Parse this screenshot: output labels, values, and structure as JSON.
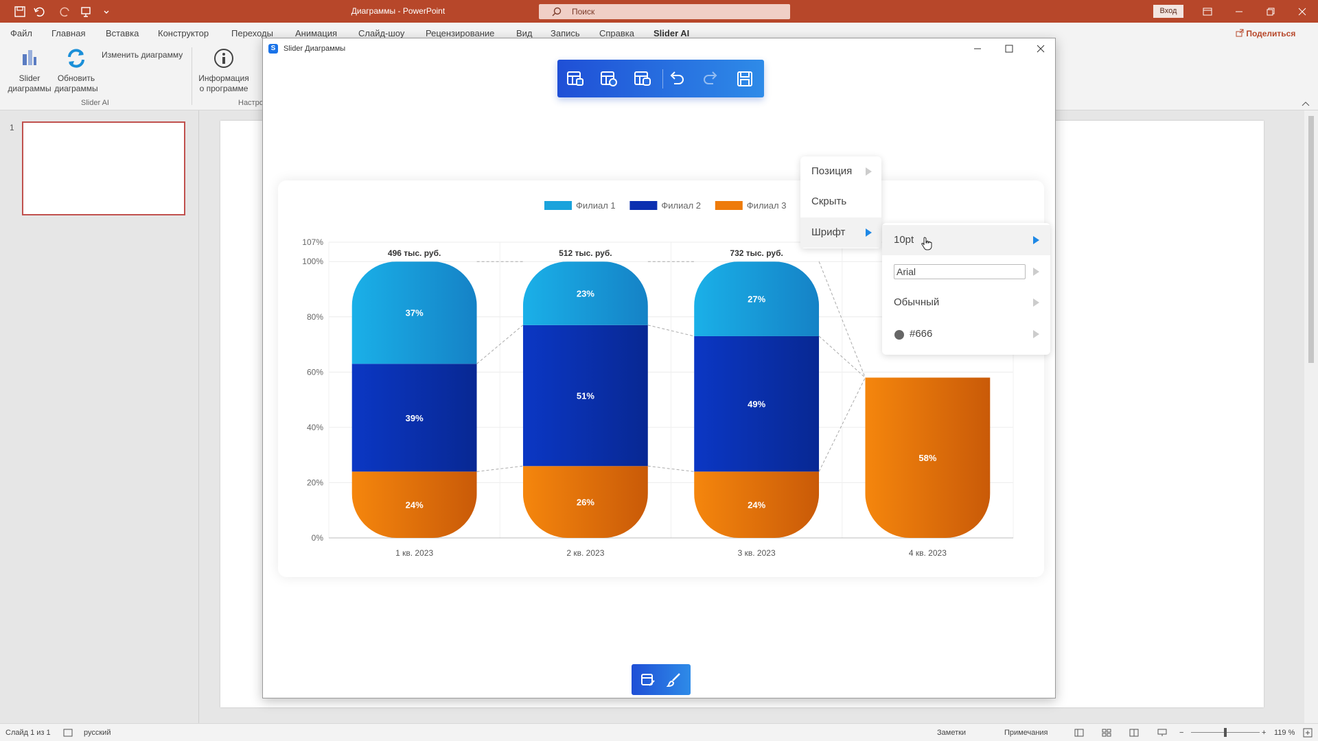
{
  "app": {
    "doc_title": "Диаграммы - PowerPoint",
    "search_placeholder": "Поиск",
    "signin_label": "Вход",
    "share_label": "Поделиться"
  },
  "ribbon": {
    "tabs": [
      "Файл",
      "Главная",
      "Вставка",
      "Конструктор",
      "Переходы",
      "Анимация",
      "Слайд-шоу",
      "Рецензирование",
      "Вид",
      "Запись",
      "Справка",
      "Slider AI"
    ],
    "active_tab": "Slider AI",
    "buttons": {
      "slider_charts": "Slider\nдиаграммы",
      "refresh_charts": "Обновить\nдиаграммы",
      "edit_chart": "Изменить диаграмму",
      "about": "Информация\nо программе"
    },
    "group_label": "Slider AI",
    "group_label_2": "Настро"
  },
  "thumbnails": {
    "slide_number": "1"
  },
  "status": {
    "slide_info": "Слайд 1 из 1",
    "language": "русский",
    "notes": "Заметки",
    "comments": "Примечания",
    "zoom": "119 %"
  },
  "dialog": {
    "title": "Slider Диаграммы",
    "logo_letter": "S"
  },
  "menu": {
    "items": [
      {
        "label": "Позиция"
      },
      {
        "label": "Скрыть"
      },
      {
        "label": "Шрифт",
        "active": true
      }
    ],
    "font_submenu": {
      "size": "10pt",
      "family": "Arial",
      "style": "Обычный",
      "color": "#666"
    }
  },
  "colors": {
    "accent_blue": "#1e88e5",
    "ppt_red": "#b7472a",
    "series": [
      "#1aa3dc",
      "#0b2fb0",
      "#ee7b0b"
    ]
  },
  "chart_data": {
    "type": "bar",
    "stacked": true,
    "categories": [
      "1 кв. 2023",
      "2 кв. 2023",
      "3 кв. 2023",
      "4 кв. 2023"
    ],
    "series": [
      {
        "name": "Филиал 1",
        "values": [
          37,
          23,
          27,
          null
        ]
      },
      {
        "name": "Филиал 2",
        "values": [
          39,
          51,
          49,
          null
        ]
      },
      {
        "name": "Филиал 3",
        "values": [
          24,
          26,
          24,
          58
        ]
      }
    ],
    "totals": [
      "496 тыс. руб.",
      "512 тыс. руб.",
      "732 тыс. руб.",
      ""
    ],
    "yticks": [
      "0%",
      "20%",
      "40%",
      "60%",
      "80%",
      "100%",
      "107%"
    ],
    "ylim": [
      0,
      107
    ],
    "legend_position": "top",
    "grid": true
  }
}
